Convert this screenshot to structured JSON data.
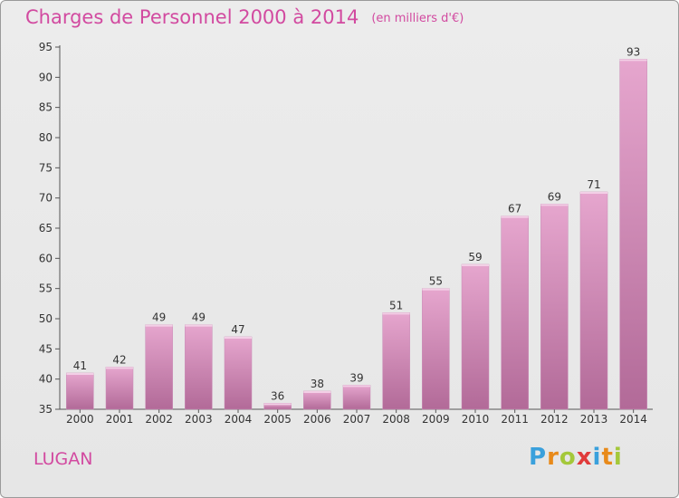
{
  "header": {
    "title": "Charges de Personnel 2000 à 2014",
    "unit": "(en milliers d'€)"
  },
  "footer": {
    "place": "LUGAN",
    "logo": [
      "P",
      "r",
      "o",
      "x",
      "i",
      "t",
      "i"
    ],
    "logo_colors": [
      "#3aa0dc",
      "#e88a1a",
      "#a4c83a",
      "#e03a3a",
      "#3aa0dc",
      "#e88a1a",
      "#a4c83a"
    ]
  },
  "chart_data": {
    "type": "bar",
    "categories": [
      "2000",
      "2001",
      "2002",
      "2003",
      "2004",
      "2005",
      "2006",
      "2007",
      "2008",
      "2009",
      "2010",
      "2011",
      "2012",
      "2013",
      "2014"
    ],
    "values": [
      41,
      42,
      49,
      49,
      47,
      36,
      38,
      39,
      51,
      55,
      59,
      67,
      69,
      71,
      93
    ],
    "ylim": [
      35,
      95
    ],
    "yticks": [
      35,
      40,
      45,
      50,
      55,
      60,
      65,
      70,
      75,
      80,
      85,
      90,
      95
    ],
    "data_labels": true,
    "grid": false,
    "bar_color_top": "#e6a6ce",
    "bar_color_bottom": "#b26a98"
  }
}
